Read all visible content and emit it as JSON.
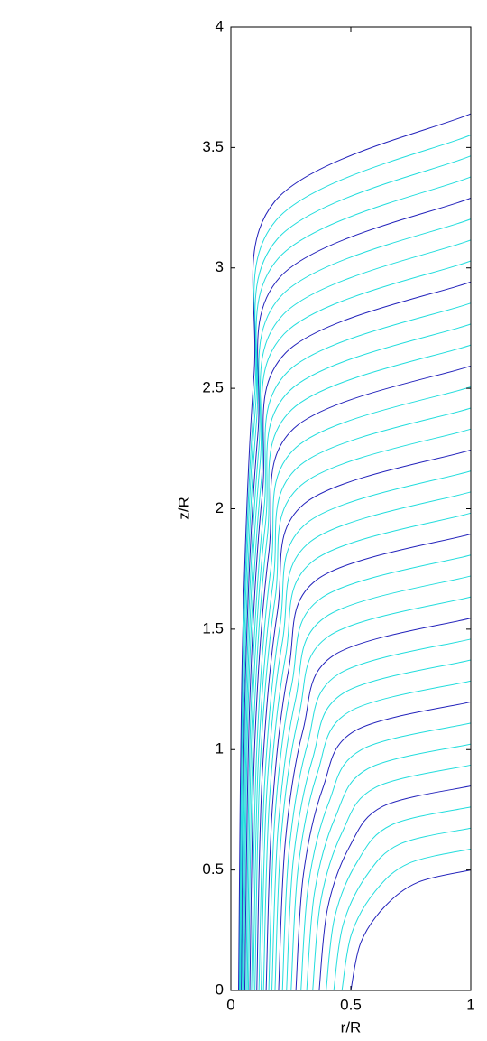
{
  "chart_data": {
    "type": "contour",
    "xlabel": "r/R",
    "ylabel": "z/R",
    "xlim": [
      0,
      1
    ],
    "ylim": [
      0,
      4
    ],
    "xticks": [
      0,
      0.5,
      1
    ],
    "yticks": [
      0,
      0.5,
      1,
      1.5,
      2,
      2.5,
      3,
      3.5,
      4
    ],
    "grid": false,
    "series": [
      {
        "color": "#2222bb",
        "x": [
          0.5,
          0.542,
          0.643,
          0.782,
          1
        ],
        "values": [
          0,
          0.2,
          0.35,
          0.45,
          0.5
        ]
      },
      {
        "color": "#22dddd",
        "x": [
          0.463,
          0.503,
          0.601,
          0.742,
          1
        ],
        "values": [
          0,
          0.235,
          0.411,
          0.528,
          0.587
        ]
      },
      {
        "color": "#22dddd",
        "x": [
          0.429,
          0.467,
          0.562,
          0.703,
          1
        ],
        "values": [
          0,
          0.27,
          0.472,
          0.607,
          0.674
        ]
      },
      {
        "color": "#22dddd",
        "x": [
          0.397,
          0.433,
          0.526,
          0.667,
          1
        ],
        "values": [
          0,
          0.305,
          0.533,
          0.686,
          0.762
        ]
      },
      {
        "color": "#2222bb",
        "x": [
          0.368,
          0.403,
          0.493,
          0.633,
          1
        ],
        "values": [
          0,
          0.34,
          0.594,
          0.764,
          0.849
        ]
      },
      {
        "color": "#22dddd",
        "x": [
          0.341,
          0.375,
          0.463,
          0.601,
          1
        ],
        "values": [
          0,
          0.374,
          0.655,
          0.842,
          0.936
        ]
      },
      {
        "color": "#22dddd",
        "x": [
          0.316,
          0.349,
          0.434,
          0.572,
          1
        ],
        "values": [
          0,
          0.409,
          0.716,
          0.921,
          1.023
        ]
      },
      {
        "color": "#22dddd",
        "x": [
          0.292,
          0.324,
          0.407,
          0.543,
          1
        ],
        "values": [
          0,
          0.444,
          0.777,
          0.999,
          1.11
        ]
      },
      {
        "color": "#2222bb",
        "x": [
          0.271,
          0.302,
          0.383,
          0.517,
          1
        ],
        "values": [
          0,
          0.479,
          0.839,
          1.078,
          1.198
        ]
      },
      {
        "color": "#22dddd",
        "x": [
          0.251,
          0.281,
          0.36,
          0.493,
          1
        ],
        "values": [
          0,
          0.514,
          0.9,
          1.157,
          1.285
        ]
      },
      {
        "color": "#22dddd",
        "x": [
          0.232,
          0.261,
          0.34,
          0.47,
          1
        ],
        "values": [
          0,
          0.549,
          0.96,
          1.235,
          1.372
        ]
      },
      {
        "color": "#22dddd",
        "x": [
          0.215,
          0.243,
          0.319,
          0.448,
          1
        ],
        "values": [
          0,
          0.584,
          1.021,
          1.313,
          1.459
        ]
      },
      {
        "color": "#2222bb",
        "x": [
          0.199,
          0.227,
          0.301,
          0.428,
          1
        ],
        "values": [
          0,
          0.618,
          1.082,
          1.391,
          1.546
        ]
      },
      {
        "color": "#22dddd",
        "x": [
          0.184,
          0.211,
          0.284,
          0.408,
          1
        ],
        "values": [
          0,
          0.654,
          1.144,
          1.471,
          1.634
        ]
      },
      {
        "color": "#22dddd",
        "x": [
          0.171,
          0.198,
          0.269,
          0.392,
          1
        ],
        "values": [
          0,
          0.688,
          1.205,
          1.549,
          1.721
        ]
      },
      {
        "color": "#22dddd",
        "x": [
          0.158,
          0.184,
          0.253,
          0.374,
          1
        ],
        "values": [
          0,
          0.723,
          1.266,
          1.627,
          1.808
        ]
      },
      {
        "color": "#2222bb",
        "x": [
          0.147,
          0.173,
          0.24,
          0.359,
          1
        ],
        "values": [
          0,
          0.758,
          1.327,
          1.706,
          1.895
        ]
      },
      {
        "color": "#22dddd",
        "x": [
          0.136,
          0.161,
          0.228,
          0.344,
          1
        ],
        "values": [
          0,
          0.793,
          1.387,
          1.784,
          1.982
        ]
      },
      {
        "color": "#22dddd",
        "x": [
          0.126,
          0.15,
          0.215,
          0.331,
          1
        ],
        "values": [
          0,
          0.828,
          1.449,
          1.863,
          2.07
        ]
      },
      {
        "color": "#22dddd",
        "x": [
          0.117,
          0.141,
          0.204,
          0.317,
          1
        ],
        "values": [
          0,
          0.863,
          1.51,
          1.941,
          2.157
        ]
      },
      {
        "color": "#2222bb",
        "x": [
          0.108,
          0.131,
          0.194,
          0.305,
          1
        ],
        "values": [
          0,
          0.898,
          1.571,
          2.02,
          2.244
        ]
      },
      {
        "color": "#22dddd",
        "x": [
          0.1,
          0.122,
          0.185,
          0.293,
          1
        ],
        "values": [
          0,
          0.932,
          1.632,
          2.098,
          2.331
        ]
      },
      {
        "color": "#22dddd",
        "x": [
          0.093,
          0.115,
          0.176,
          0.283,
          1
        ],
        "values": [
          0,
          0.967,
          1.693,
          2.176,
          2.418
        ]
      },
      {
        "color": "#22dddd",
        "x": [
          0.086,
          0.108,
          0.167,
          0.272,
          1
        ],
        "values": [
          0,
          1.002,
          1.754,
          2.255,
          2.506
        ]
      },
      {
        "color": "#2222bb",
        "x": [
          0.079,
          0.1,
          0.158,
          0.263,
          1
        ],
        "values": [
          0,
          1.037,
          1.815,
          2.334,
          2.593
        ]
      },
      {
        "color": "#22dddd",
        "x": [
          0.073,
          0.094,
          0.151,
          0.254,
          1
        ],
        "values": [
          0,
          1.072,
          1.876,
          2.412,
          2.68
        ]
      },
      {
        "color": "#22dddd",
        "x": [
          0.068,
          0.088,
          0.144,
          0.245,
          1
        ],
        "values": [
          0,
          1.107,
          1.937,
          2.49,
          2.767
        ]
      },
      {
        "color": "#22dddd",
        "x": [
          0.063,
          0.083,
          0.138,
          0.237,
          1
        ],
        "values": [
          0,
          1.142,
          1.998,
          2.569,
          2.854
        ]
      },
      {
        "color": "#2222bb",
        "x": [
          0.058,
          0.078,
          0.131,
          0.229,
          1
        ],
        "values": [
          0,
          1.177,
          2.059,
          2.648,
          2.942
        ]
      },
      {
        "color": "#22dddd",
        "x": [
          0.054,
          0.073,
          0.127,
          0.222,
          1
        ],
        "values": [
          0,
          1.212,
          2.12,
          2.726,
          3.029
        ]
      },
      {
        "color": "#22dddd",
        "x": [
          0.05,
          0.069,
          0.121,
          0.216,
          1
        ],
        "values": [
          0,
          1.246,
          2.181,
          2.804,
          3.116
        ]
      },
      {
        "color": "#22dddd",
        "x": [
          0.046,
          0.065,
          0.116,
          0.209,
          1
        ],
        "values": [
          0,
          1.281,
          2.242,
          2.883,
          3.203
        ]
      },
      {
        "color": "#2222bb",
        "x": [
          0.043,
          0.061,
          0.112,
          0.204,
          1
        ],
        "values": [
          0,
          1.316,
          2.303,
          2.961,
          3.29
        ]
      },
      {
        "color": "#22dddd",
        "x": [
          0.04,
          0.058,
          0.107,
          0.198,
          1
        ],
        "values": [
          0,
          1.351,
          2.365,
          3.04,
          3.378
        ]
      },
      {
        "color": "#22dddd",
        "x": [
          0.037,
          0.054,
          0.103,
          0.193,
          1
        ],
        "values": [
          0,
          1.386,
          2.426,
          3.119,
          3.465
        ]
      },
      {
        "color": "#22dddd",
        "x": [
          0.034,
          0.051,
          0.1,
          0.188,
          1
        ],
        "values": [
          0,
          1.421,
          2.486,
          3.197,
          3.552
        ]
      },
      {
        "color": "#2222bb",
        "x": [
          0.032,
          0.049,
          0.096,
          0.183,
          1
        ],
        "values": [
          0,
          1.456,
          2.548,
          3.276,
          3.64
        ]
      }
    ]
  }
}
